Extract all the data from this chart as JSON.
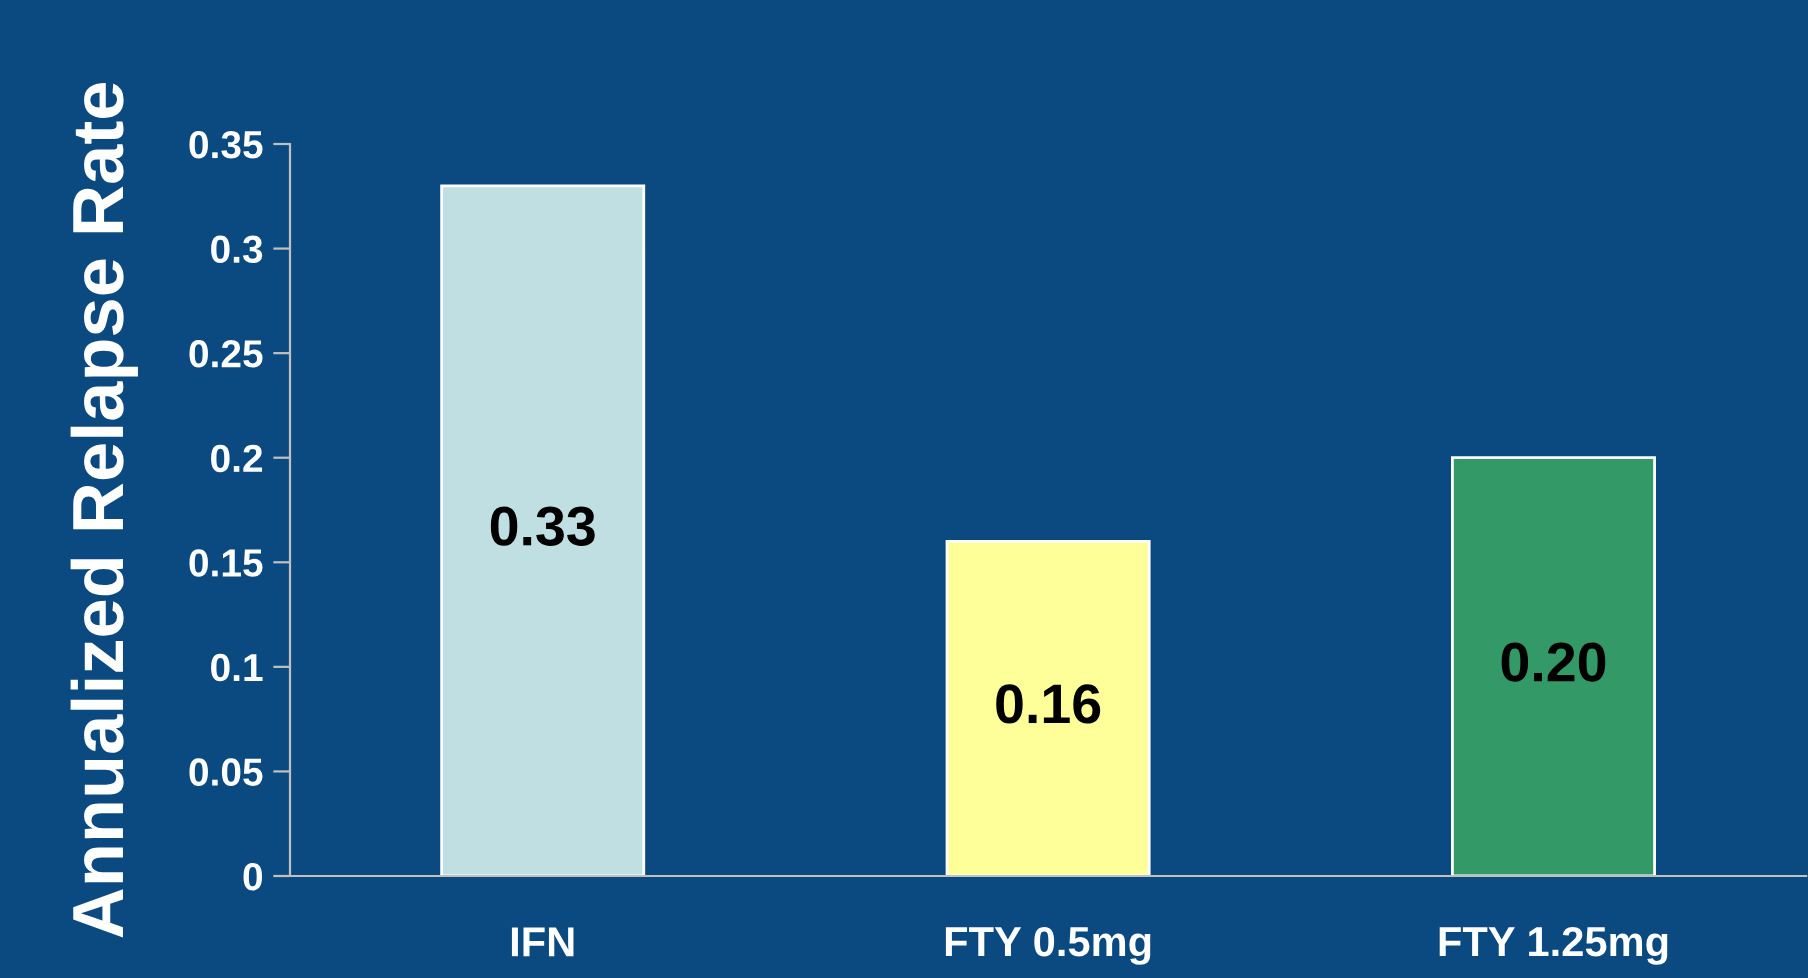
{
  "chart_data": {
    "type": "bar",
    "ylabel": "Annualized Relapse Rate",
    "categories": [
      "IFN",
      "FTY 0.5mg",
      "FTY 1.25mg"
    ],
    "values": [
      0.33,
      0.16,
      0.2
    ],
    "colors": [
      "#c0dfe3",
      "#ffff99",
      "#339966"
    ],
    "value_labels": [
      "0.33",
      "0.16",
      "0.20"
    ],
    "ylim": [
      0,
      0.35
    ],
    "yticks": [
      0,
      0.05,
      0.1,
      0.15,
      0.2,
      0.25,
      0.3,
      0.35
    ],
    "grid": false,
    "legend": false
  }
}
